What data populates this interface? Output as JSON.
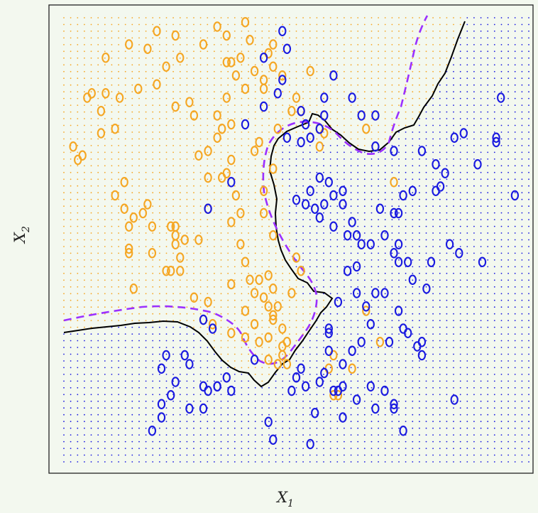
{
  "chart_data": {
    "type": "scatter",
    "title": "",
    "xlabel_main": "X",
    "xlabel_sub": "1",
    "ylabel_main": "X",
    "ylabel_sub": "2",
    "xlim": [
      0,
      1
    ],
    "ylim": [
      0,
      1
    ],
    "grid": false,
    "point_marker": "o",
    "colors": {
      "class_orange": "#f5a623",
      "class_blue": "#1a1ae0",
      "bayes_boundary": "#9b30ff",
      "knn_boundary": "#000000",
      "frame": "#222222"
    },
    "series": [
      {
        "class": "orange",
        "points": [
          [
            0.04,
            0.69
          ],
          [
            0.08,
            0.74
          ],
          [
            0.11,
            0.75
          ],
          [
            0.13,
            0.63
          ],
          [
            0.11,
            0.6
          ],
          [
            0.13,
            0.57
          ],
          [
            0.15,
            0.55
          ],
          [
            0.17,
            0.56
          ],
          [
            0.14,
            0.53
          ],
          [
            0.19,
            0.53
          ],
          [
            0.18,
            0.58
          ],
          [
            0.14,
            0.48
          ],
          [
            0.14,
            0.47
          ],
          [
            0.19,
            0.47
          ],
          [
            0.15,
            0.39
          ],
          [
            0.23,
            0.53
          ],
          [
            0.24,
            0.53
          ],
          [
            0.24,
            0.51
          ],
          [
            0.24,
            0.49
          ],
          [
            0.26,
            0.5
          ],
          [
            0.29,
            0.5
          ],
          [
            0.25,
            0.46
          ],
          [
            0.25,
            0.43
          ],
          [
            0.22,
            0.43
          ],
          [
            0.23,
            0.43
          ],
          [
            0.28,
            0.37
          ],
          [
            0.31,
            0.57
          ],
          [
            0.31,
            0.64
          ],
          [
            0.33,
            0.73
          ],
          [
            0.29,
            0.69
          ],
          [
            0.31,
            0.7
          ],
          [
            0.34,
            0.75
          ],
          [
            0.34,
            0.64
          ],
          [
            0.35,
            0.65
          ],
          [
            0.36,
            0.68
          ],
          [
            0.37,
            0.6
          ],
          [
            0.36,
            0.54
          ],
          [
            0.38,
            0.49
          ],
          [
            0.39,
            0.45
          ],
          [
            0.38,
            0.56
          ],
          [
            0.4,
            0.41
          ],
          [
            0.42,
            0.41
          ],
          [
            0.41,
            0.38
          ],
          [
            0.39,
            0.34
          ],
          [
            0.43,
            0.37
          ],
          [
            0.44,
            0.35
          ],
          [
            0.46,
            0.35
          ],
          [
            0.45,
            0.33
          ],
          [
            0.45,
            0.32
          ],
          [
            0.47,
            0.3
          ],
          [
            0.44,
            0.23
          ],
          [
            0.46,
            0.22
          ],
          [
            0.47,
            0.24
          ],
          [
            0.48,
            0.22
          ],
          [
            0.39,
            0.28
          ],
          [
            0.36,
            0.29
          ],
          [
            0.32,
            0.31
          ],
          [
            0.3,
            0.32
          ],
          [
            0.31,
            0.36
          ],
          [
            0.36,
            0.4
          ],
          [
            0.41,
            0.31
          ],
          [
            0.42,
            0.27
          ],
          [
            0.44,
            0.28
          ],
          [
            0.47,
            0.26
          ],
          [
            0.48,
            0.27
          ],
          [
            0.49,
            0.38
          ],
          [
            0.51,
            0.43
          ],
          [
            0.5,
            0.46
          ],
          [
            0.45,
            0.51
          ],
          [
            0.43,
            0.56
          ],
          [
            0.43,
            0.61
          ],
          [
            0.45,
            0.66
          ],
          [
            0.41,
            0.7
          ],
          [
            0.42,
            0.72
          ],
          [
            0.46,
            0.75
          ],
          [
            0.49,
            0.79
          ],
          [
            0.51,
            0.79
          ],
          [
            0.5,
            0.82
          ],
          [
            0.47,
            0.87
          ],
          [
            0.45,
            0.89
          ],
          [
            0.43,
            0.86
          ],
          [
            0.44,
            0.92
          ],
          [
            0.4,
            0.95
          ],
          [
            0.41,
            0.88
          ],
          [
            0.43,
            0.84
          ],
          [
            0.45,
            0.94
          ],
          [
            0.38,
            0.91
          ],
          [
            0.37,
            0.87
          ],
          [
            0.36,
            0.9
          ],
          [
            0.39,
            0.84
          ],
          [
            0.35,
            0.82
          ],
          [
            0.36,
            0.76
          ],
          [
            0.33,
            0.78
          ],
          [
            0.28,
            0.78
          ],
          [
            0.27,
            0.81
          ],
          [
            0.24,
            0.8
          ],
          [
            0.2,
            0.85
          ],
          [
            0.22,
            0.89
          ],
          [
            0.16,
            0.84
          ],
          [
            0.12,
            0.82
          ],
          [
            0.09,
            0.83
          ],
          [
            0.06,
            0.83
          ],
          [
            0.05,
            0.82
          ],
          [
            0.08,
            0.79
          ],
          [
            0.03,
            0.68
          ],
          [
            0.02,
            0.71
          ],
          [
            0.09,
            0.91
          ],
          [
            0.14,
            0.94
          ],
          [
            0.18,
            0.93
          ],
          [
            0.2,
            0.97
          ],
          [
            0.24,
            0.96
          ],
          [
            0.25,
            0.91
          ],
          [
            0.3,
            0.94
          ],
          [
            0.33,
            0.98
          ],
          [
            0.35,
            0.96
          ],
          [
            0.39,
            0.99
          ],
          [
            0.35,
            0.9
          ],
          [
            0.53,
            0.88
          ],
          [
            0.55,
            0.75
          ],
          [
            0.56,
            0.74
          ],
          [
            0.55,
            0.71
          ],
          [
            0.65,
            0.75
          ],
          [
            0.71,
            0.63
          ],
          [
            0.65,
            0.34
          ],
          [
            0.68,
            0.27
          ],
          [
            0.58,
            0.24
          ],
          [
            0.57,
            0.21
          ],
          [
            0.58,
            0.15
          ],
          [
            0.59,
            0.15
          ],
          [
            0.62,
            0.21
          ],
          [
            0.45,
            0.39
          ],
          [
            0.44,
            0.42
          ]
        ]
      },
      {
        "class": "blue",
        "points": [
          [
            0.48,
            0.73
          ],
          [
            0.51,
            0.72
          ],
          [
            0.53,
            0.73
          ],
          [
            0.52,
            0.76
          ],
          [
            0.51,
            0.79
          ],
          [
            0.55,
            0.75
          ],
          [
            0.56,
            0.78
          ],
          [
            0.55,
            0.64
          ],
          [
            0.58,
            0.6
          ],
          [
            0.57,
            0.63
          ],
          [
            0.56,
            0.58
          ],
          [
            0.6,
            0.58
          ],
          [
            0.6,
            0.61
          ],
          [
            0.54,
            0.57
          ],
          [
            0.52,
            0.58
          ],
          [
            0.5,
            0.59
          ],
          [
            0.53,
            0.61
          ],
          [
            0.55,
            0.55
          ],
          [
            0.58,
            0.53
          ],
          [
            0.61,
            0.51
          ],
          [
            0.63,
            0.51
          ],
          [
            0.62,
            0.54
          ],
          [
            0.64,
            0.49
          ],
          [
            0.66,
            0.49
          ],
          [
            0.63,
            0.44
          ],
          [
            0.61,
            0.43
          ],
          [
            0.63,
            0.38
          ],
          [
            0.59,
            0.36
          ],
          [
            0.57,
            0.3
          ],
          [
            0.57,
            0.29
          ],
          [
            0.57,
            0.25
          ],
          [
            0.56,
            0.2
          ],
          [
            0.55,
            0.18
          ],
          [
            0.52,
            0.17
          ],
          [
            0.51,
            0.21
          ],
          [
            0.5,
            0.19
          ],
          [
            0.49,
            0.16
          ],
          [
            0.58,
            0.16
          ],
          [
            0.59,
            0.16
          ],
          [
            0.6,
            0.17
          ],
          [
            0.6,
            0.22
          ],
          [
            0.62,
            0.25
          ],
          [
            0.64,
            0.27
          ],
          [
            0.66,
            0.31
          ],
          [
            0.65,
            0.35
          ],
          [
            0.67,
            0.38
          ],
          [
            0.69,
            0.38
          ],
          [
            0.72,
            0.34
          ],
          [
            0.74,
            0.29
          ],
          [
            0.76,
            0.26
          ],
          [
            0.79,
            0.45
          ],
          [
            0.83,
            0.49
          ],
          [
            0.85,
            0.47
          ],
          [
            0.9,
            0.45
          ],
          [
            0.97,
            0.6
          ],
          [
            0.89,
            0.67
          ],
          [
            0.93,
            0.72
          ],
          [
            0.93,
            0.73
          ],
          [
            0.84,
            0.73
          ],
          [
            0.86,
            0.74
          ],
          [
            0.94,
            0.82
          ],
          [
            0.56,
            0.82
          ],
          [
            0.58,
            0.87
          ],
          [
            0.62,
            0.82
          ],
          [
            0.64,
            0.78
          ],
          [
            0.67,
            0.78
          ],
          [
            0.67,
            0.71
          ],
          [
            0.71,
            0.7
          ],
          [
            0.77,
            0.7
          ],
          [
            0.8,
            0.67
          ],
          [
            0.82,
            0.65
          ],
          [
            0.81,
            0.62
          ],
          [
            0.8,
            0.61
          ],
          [
            0.75,
            0.61
          ],
          [
            0.73,
            0.6
          ],
          [
            0.72,
            0.56
          ],
          [
            0.71,
            0.56
          ],
          [
            0.68,
            0.57
          ],
          [
            0.69,
            0.51
          ],
          [
            0.72,
            0.49
          ],
          [
            0.71,
            0.47
          ],
          [
            0.72,
            0.45
          ],
          [
            0.74,
            0.45
          ],
          [
            0.75,
            0.41
          ],
          [
            0.78,
            0.39
          ],
          [
            0.7,
            0.27
          ],
          [
            0.73,
            0.3
          ],
          [
            0.77,
            0.27
          ],
          [
            0.77,
            0.24
          ],
          [
            0.6,
            0.1
          ],
          [
            0.54,
            0.11
          ],
          [
            0.36,
            0.16
          ],
          [
            0.32,
            0.3
          ],
          [
            0.3,
            0.32
          ],
          [
            0.31,
            0.57
          ],
          [
            0.36,
            0.63
          ],
          [
            0.39,
            0.76
          ],
          [
            0.43,
            0.8
          ],
          [
            0.46,
            0.83
          ],
          [
            0.47,
            0.86
          ],
          [
            0.43,
            0.91
          ],
          [
            0.48,
            0.93
          ],
          [
            0.47,
            0.97
          ],
          [
            0.33,
            0.17
          ],
          [
            0.35,
            0.19
          ],
          [
            0.41,
            0.23
          ],
          [
            0.44,
            0.09
          ],
          [
            0.45,
            0.05
          ],
          [
            0.53,
            0.04
          ],
          [
            0.63,
            0.14
          ],
          [
            0.66,
            0.17
          ],
          [
            0.67,
            0.12
          ],
          [
            0.69,
            0.16
          ],
          [
            0.71,
            0.12
          ],
          [
            0.71,
            0.13
          ],
          [
            0.73,
            0.07
          ],
          [
            0.84,
            0.14
          ],
          [
            0.22,
            0.24
          ],
          [
            0.26,
            0.24
          ],
          [
            0.3,
            0.17
          ],
          [
            0.19,
            0.07
          ],
          [
            0.21,
            0.1
          ],
          [
            0.21,
            0.13
          ],
          [
            0.23,
            0.15
          ],
          [
            0.27,
            0.12
          ],
          [
            0.21,
            0.21
          ],
          [
            0.24,
            0.18
          ],
          [
            0.27,
            0.22
          ],
          [
            0.3,
            0.12
          ],
          [
            0.31,
            0.16
          ],
          [
            0.33,
            0.17
          ]
        ]
      }
    ]
  }
}
